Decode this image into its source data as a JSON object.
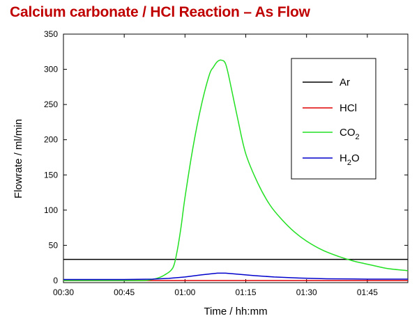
{
  "title": "Calcium carbonate / HCl Reaction – As Flow",
  "chart_data": {
    "type": "line",
    "xlabel": "Time / hh:mm",
    "ylabel": "Flowrate  /  ml/min",
    "xlim_minutes": [
      30,
      115
    ],
    "ylim": [
      -3,
      350
    ],
    "x_ticks": [
      "00:30",
      "00:45",
      "01:00",
      "01:15",
      "01:30",
      "01:45"
    ],
    "y_ticks": [
      0,
      50,
      100,
      150,
      200,
      250,
      300,
      350
    ],
    "grid": false,
    "legend_position": "top-right",
    "series": [
      {
        "name": "Ar",
        "legend_main": "Ar",
        "legend_sub": "",
        "legend_tail": "",
        "color": "#000000",
        "x": [
          "00:30",
          "01:55"
        ],
        "y": [
          30,
          30
        ]
      },
      {
        "name": "HCl",
        "legend_main": "HCl",
        "legend_sub": "",
        "legend_tail": "",
        "color": "#e00000",
        "x": [
          "00:30",
          "01:55"
        ],
        "y": [
          0,
          0
        ]
      },
      {
        "name": "CO2",
        "legend_main": "CO",
        "legend_sub": "2",
        "legend_tail": "",
        "color": "#22e022",
        "x": [
          "00:30",
          "00:45",
          "00:50",
          "00:53",
          "00:55",
          "00:57",
          "00:58",
          "00:59",
          "01:00",
          "01:02",
          "01:04",
          "01:06",
          "01:07",
          "01:08",
          "01:09",
          "01:10",
          "01:11",
          "01:13",
          "01:15",
          "01:18",
          "01:21",
          "01:24",
          "01:27",
          "01:30",
          "01:34",
          "01:38",
          "01:42",
          "01:46",
          "01:50",
          "01:55"
        ],
        "y": [
          0,
          0,
          0,
          3,
          8,
          18,
          40,
          75,
          118,
          190,
          248,
          292,
          303,
          311,
          313,
          308,
          285,
          230,
          180,
          138,
          107,
          86,
          69,
          56,
          43,
          34,
          27,
          22,
          17,
          14
        ]
      },
      {
        "name": "H2O",
        "legend_main": "H",
        "legend_sub": "2",
        "legend_tail": "O",
        "color": "#0000cc",
        "x": [
          "00:30",
          "00:45",
          "00:52",
          "00:56",
          "01:00",
          "01:04",
          "01:08",
          "01:10",
          "01:13",
          "01:17",
          "01:22",
          "01:28",
          "01:35",
          "01:45",
          "01:55"
        ],
        "y": [
          1.5,
          1.5,
          2,
          3,
          5,
          8,
          10.5,
          10.5,
          9,
          7,
          5,
          3.5,
          2.5,
          2,
          2
        ]
      }
    ]
  }
}
